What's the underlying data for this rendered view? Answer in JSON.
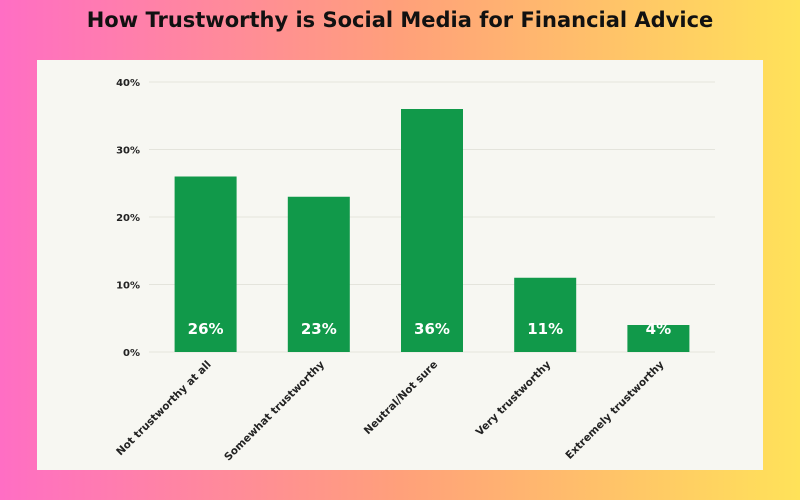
{
  "chart_data": {
    "type": "bar",
    "title": "How Trustworthy is Social Media for Financial Advice",
    "categories": [
      "Not trustworthy at all",
      "Somewhat trustworthy",
      "Neutral/Not sure",
      "Very trustworthy",
      "Extremely trustworthy"
    ],
    "values": [
      26,
      23,
      36,
      11,
      4
    ],
    "data_labels": [
      "26%",
      "23%",
      "36%",
      "11%",
      "4%"
    ],
    "yticks": [
      0,
      10,
      20,
      30,
      40
    ],
    "ytick_labels": [
      "0%",
      "10%",
      "20%",
      "30%",
      "40%"
    ],
    "ylim": [
      0,
      40
    ],
    "xlabel": "",
    "ylabel": "",
    "grid": true,
    "legend": "none",
    "colors": {
      "bar": "#11994a",
      "grid": "#e4e4dc",
      "background": "#f7f7f2"
    }
  }
}
